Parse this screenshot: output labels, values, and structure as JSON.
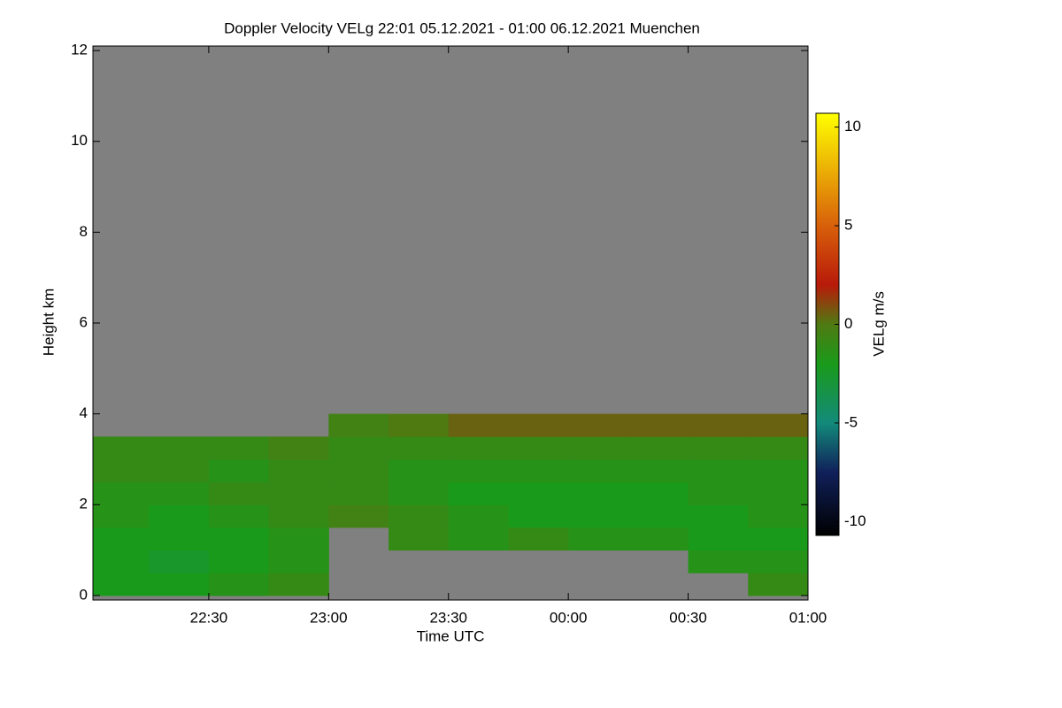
{
  "chart_data": {
    "type": "heatmap",
    "title": "Doppler Velocity VELg   22:01 05.12.2021 - 01:00 06.12.2021 Muenchen",
    "xlabel": "Time UTC",
    "ylabel": "Height km",
    "colorbar_label": "VELg m/s",
    "background": "#808080",
    "xbins": [
      22.0167,
      22.25,
      22.5,
      22.75,
      23,
      23.25,
      23.5,
      23.75,
      24,
      24.25,
      24.5,
      24.75,
      25
    ],
    "ybins": [
      0,
      0.5,
      1,
      1.5,
      2,
      2.5,
      3,
      3.5,
      4
    ],
    "z": [
      [
        -2,
        -2,
        -1.5,
        -1,
        null,
        null,
        null,
        null,
        null,
        null,
        null,
        -1
      ],
      [
        -2,
        -2.5,
        -2,
        -1.5,
        null,
        null,
        null,
        null,
        null,
        null,
        -1.5,
        -1.5
      ],
      [
        -2,
        -2,
        -2,
        -1.5,
        null,
        -1,
        -1.5,
        -1,
        -1.5,
        -1.5,
        -2,
        -2
      ],
      [
        -1.5,
        -2,
        -1.5,
        -1,
        -0.5,
        -1,
        -1.5,
        -2,
        -2,
        -2,
        -2,
        -1.5
      ],
      [
        -1.5,
        -1.5,
        -1,
        -1,
        -1,
        -1.5,
        -2,
        -2,
        -2,
        -2,
        -1.5,
        -1.5
      ],
      [
        -1,
        -1,
        -1.5,
        -1,
        -1,
        -1.5,
        -1.5,
        -1.5,
        -1.5,
        -1.5,
        -1.5,
        -1.5
      ],
      [
        -1,
        -1,
        -1,
        -0.5,
        -1,
        -1,
        -1,
        -1,
        -1,
        -1,
        -1,
        -1
      ],
      [
        null,
        null,
        null,
        null,
        -0.5,
        0,
        0.5,
        0.5,
        0.5,
        0.5,
        0.5,
        0.5
      ]
    ],
    "xlim": [
      22.0167,
      25
    ],
    "ylim": [
      -0.1,
      12.1
    ],
    "xticks": [
      {
        "value": 22.5,
        "label": "22:30"
      },
      {
        "value": 23,
        "label": "23:00"
      },
      {
        "value": 23.5,
        "label": "23:30"
      },
      {
        "value": 24,
        "label": "00:00"
      },
      {
        "value": 24.5,
        "label": "00:30"
      },
      {
        "value": 25,
        "label": "01:00"
      }
    ],
    "yticks": [
      0,
      2,
      4,
      6,
      8,
      10,
      12
    ],
    "clim": [
      -10.7,
      10.7
    ],
    "cticks": [
      -10,
      -5,
      0,
      5,
      10
    ],
    "colorscale": [
      [
        -10.7,
        "#000000"
      ],
      [
        -7.5,
        "#10205a"
      ],
      [
        -5,
        "#138a7a"
      ],
      [
        -2,
        "#1a9a1a"
      ],
      [
        0,
        "#4f7a12"
      ],
      [
        2,
        "#b81a0a"
      ],
      [
        5,
        "#d8600a"
      ],
      [
        10.7,
        "#ffff00"
      ]
    ]
  }
}
